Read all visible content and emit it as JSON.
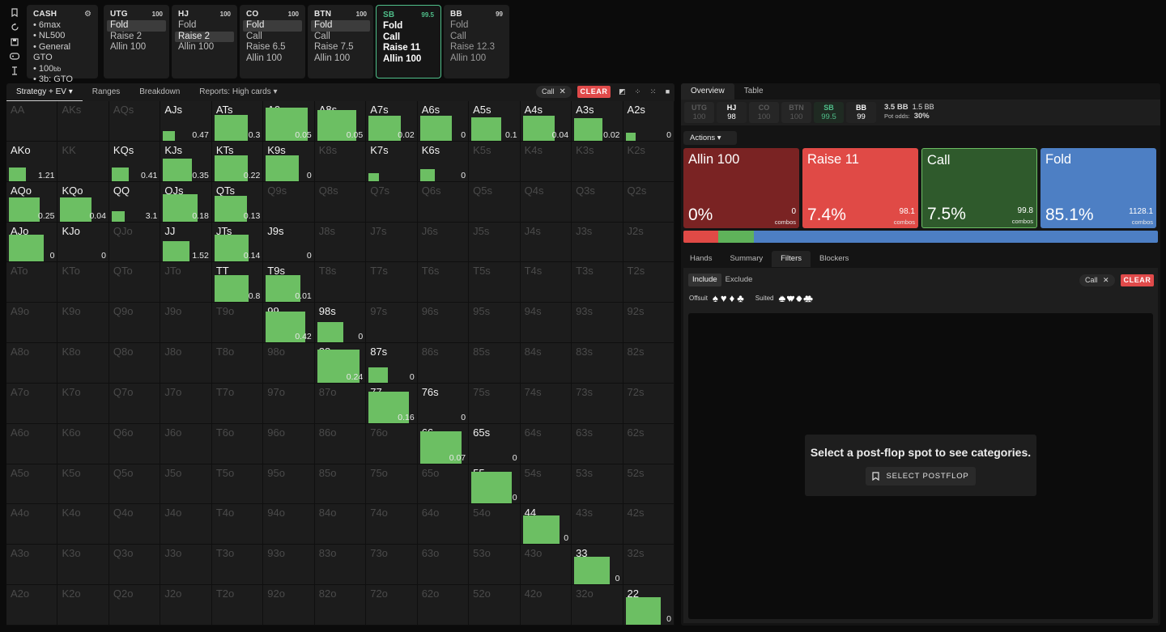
{
  "toolbar": {
    "icons": [
      "bookmark-icon",
      "refresh-icon",
      "save-icon",
      "gamepad-icon",
      "text-cursor-icon"
    ]
  },
  "cash_card": {
    "title": "CASH",
    "items": [
      "6max",
      "NL500",
      "General GTO",
      "100",
      "3b: GTO"
    ],
    "bb_suffix": "bb"
  },
  "positions": [
    {
      "name": "UTG",
      "stack": "100",
      "actions": [
        "Fold",
        "Raise 2",
        "Allin 100"
      ],
      "selected": 0
    },
    {
      "name": "HJ",
      "stack": "100",
      "actions": [
        "Fold",
        "Raise 2",
        "Allin 100"
      ],
      "selected": 1
    },
    {
      "name": "CO",
      "stack": "100",
      "actions": [
        "Fold",
        "Call",
        "Raise 6.5",
        "Allin 100"
      ],
      "selected": 0
    },
    {
      "name": "BTN",
      "stack": "100",
      "actions": [
        "Fold",
        "Call",
        "Raise 7.5",
        "Allin 100"
      ],
      "selected": 0
    },
    {
      "name": "SB",
      "stack": "99.5",
      "actions": [
        "Fold",
        "Call",
        "Raise 11",
        "Allin 100"
      ],
      "selected": -1
    },
    {
      "name": "BB",
      "stack": "99",
      "actions": [
        "Fold",
        "Call",
        "Raise 12.3",
        "Allin 100"
      ],
      "selected": -1
    }
  ],
  "left_tabs": [
    "Strategy + EV",
    "Ranges",
    "Breakdown",
    "Reports: High cards"
  ],
  "left_filter": {
    "chip": "Call",
    "chip_close": "✕",
    "clear": "CLEAR"
  },
  "grid": {
    "ranks": [
      "A",
      "K",
      "Q",
      "J",
      "T",
      "9",
      "8",
      "7",
      "6",
      "5",
      "4",
      "3",
      "2"
    ],
    "cells": [
      {
        "hand": "AJs",
        "lit": true,
        "freq": 0.08,
        "ev": "0.47"
      },
      {
        "hand": "ATs",
        "lit": true,
        "freq": 0.62,
        "ev": "0.3"
      },
      {
        "hand": "A9s",
        "lit": true,
        "freq": 1.0,
        "ev": "0.05"
      },
      {
        "hand": "A8s",
        "lit": true,
        "freq": 0.85,
        "ev": "0.05"
      },
      {
        "hand": "A7s",
        "lit": true,
        "freq": 0.58,
        "ev": "0.02"
      },
      {
        "hand": "A6s",
        "lit": true,
        "freq": 0.58,
        "ev": "0"
      },
      {
        "hand": "A5s",
        "lit": true,
        "freq": 0.5,
        "ev": "0.1"
      },
      {
        "hand": "A4s",
        "lit": true,
        "freq": 0.58,
        "ev": "0.04"
      },
      {
        "hand": "A3s",
        "lit": true,
        "freq": 0.46,
        "ev": "0.02"
      },
      {
        "hand": "A2s",
        "lit": true,
        "freq": 0.02,
        "ev": "0"
      },
      {
        "hand": "AKo",
        "lit": true,
        "freq": 0.17,
        "ev": "1.21"
      },
      {
        "hand": "KQs",
        "lit": true,
        "freq": 0.17,
        "ev": "0.41"
      },
      {
        "hand": "KJs",
        "lit": true,
        "freq": 0.46,
        "ev": "0.35"
      },
      {
        "hand": "KTs",
        "lit": true,
        "freq": 0.62,
        "ev": "0.22"
      },
      {
        "hand": "K9s",
        "lit": true,
        "freq": 0.62,
        "ev": "0"
      },
      {
        "hand": "K7s",
        "lit": true,
        "freq": 0.02,
        "ev": ""
      },
      {
        "hand": "K6s",
        "lit": true,
        "freq": 0.13,
        "ev": "0"
      },
      {
        "hand": "AQo",
        "lit": true,
        "freq": 0.54,
        "ev": "0.25"
      },
      {
        "hand": "KQo",
        "lit": true,
        "freq": 0.54,
        "ev": "0.04"
      },
      {
        "hand": "QQ",
        "lit": true,
        "freq": 0.1,
        "ev": "3.1"
      },
      {
        "hand": "QJs",
        "lit": true,
        "freq": 0.67,
        "ev": "0.18"
      },
      {
        "hand": "QTs",
        "lit": true,
        "freq": 0.6,
        "ev": "0.13"
      },
      {
        "hand": "AJo",
        "lit": true,
        "freq": 0.67,
        "ev": "0"
      },
      {
        "hand": "KJo",
        "lit": true,
        "freq": 0.0,
        "ev": "0"
      },
      {
        "hand": "JJ",
        "lit": true,
        "freq": 0.4,
        "ev": "1.52"
      },
      {
        "hand": "JTs",
        "lit": true,
        "freq": 0.67,
        "ev": "0.14"
      },
      {
        "hand": "J9s",
        "lit": true,
        "freq": 0.0,
        "ev": "0"
      },
      {
        "hand": "TT",
        "lit": true,
        "freq": 0.67,
        "ev": "0.8"
      },
      {
        "hand": "T9s",
        "lit": true,
        "freq": 0.67,
        "ev": "0.01"
      },
      {
        "hand": "99",
        "lit": true,
        "freq": 0.88,
        "ev": "0.42"
      },
      {
        "hand": "98s",
        "lit": true,
        "freq": 0.38,
        "ev": "0"
      },
      {
        "hand": "88",
        "lit": true,
        "freq": 1.0,
        "ev": "0.24"
      },
      {
        "hand": "87s",
        "lit": true,
        "freq": 0.21,
        "ev": "0"
      },
      {
        "hand": "77",
        "lit": true,
        "freq": 0.92,
        "ev": "0.16"
      },
      {
        "hand": "76s",
        "lit": true,
        "freq": 0.0,
        "ev": "0"
      },
      {
        "hand": "66",
        "lit": true,
        "freq": 0.96,
        "ev": "0.07"
      },
      {
        "hand": "65s",
        "lit": true,
        "freq": 0.0,
        "ev": "0"
      },
      {
        "hand": "55",
        "lit": true,
        "freq": 0.92,
        "ev": "0"
      },
      {
        "hand": "44",
        "lit": true,
        "freq": 0.75,
        "ev": "0"
      },
      {
        "hand": "33",
        "lit": true,
        "freq": 0.71,
        "ev": "0"
      },
      {
        "hand": "22",
        "lit": true,
        "freq": 0.71,
        "ev": "0"
      }
    ]
  },
  "right_tabs": [
    "Overview",
    "Table"
  ],
  "pos_chips": [
    {
      "name": "UTG",
      "val": "100",
      "state": "dim"
    },
    {
      "name": "HJ",
      "val": "98",
      "state": "on"
    },
    {
      "name": "CO",
      "val": "100",
      "state": "dim"
    },
    {
      "name": "BTN",
      "val": "100",
      "state": "dim"
    },
    {
      "name": "SB",
      "val": "99.5",
      "state": "hero"
    },
    {
      "name": "BB",
      "val": "99",
      "state": "on"
    }
  ],
  "pot": {
    "pot": "3.5 BB",
    "to_call": "1.5 BB",
    "odds_label": "Pot odds:",
    "odds": "30%"
  },
  "actions_label": "Actions",
  "action_boxes": [
    {
      "label": "Allin 100",
      "pct": "0%",
      "combos": "0",
      "combos_label": "combos",
      "color": "#7a2323"
    },
    {
      "label": "Raise 11",
      "pct": "7.4%",
      "combos": "98.1",
      "combos_label": "combos",
      "color": "#e04a46"
    },
    {
      "label": "Call",
      "pct": "7.5%",
      "combos": "99.8",
      "combos_label": "combos",
      "color": "#2f5a2c"
    },
    {
      "label": "Fold",
      "pct": "85.1%",
      "combos": "1128.1",
      "combos_label": "combos",
      "color": "#4d7fc4"
    }
  ],
  "freq_bar": [
    {
      "name": "raise",
      "pct": 7.4,
      "color": "#e04a46"
    },
    {
      "name": "call",
      "pct": 7.5,
      "color": "#5fb25a"
    },
    {
      "name": "fold",
      "pct": 85.1,
      "color": "#4d7fc4"
    }
  ],
  "sub_tabs": [
    "Hands",
    "Summary",
    "Filters",
    "Blockers"
  ],
  "filters": {
    "include": "Include",
    "exclude": "Exclude",
    "chip": "Call",
    "chip_close": "✕",
    "clear": "CLEAR",
    "offsuit_label": "Offsuit",
    "suited_label": "Suited",
    "offsuit_suits": [
      "♠",
      "♥",
      "♦",
      "♣"
    ],
    "suited_suits": [
      "♠♠",
      "♥♥",
      "♦♦",
      "♣♣"
    ]
  },
  "postflop": {
    "message": "Select a post-flop spot to see categories.",
    "button": "SELECT POSTFLOP"
  }
}
